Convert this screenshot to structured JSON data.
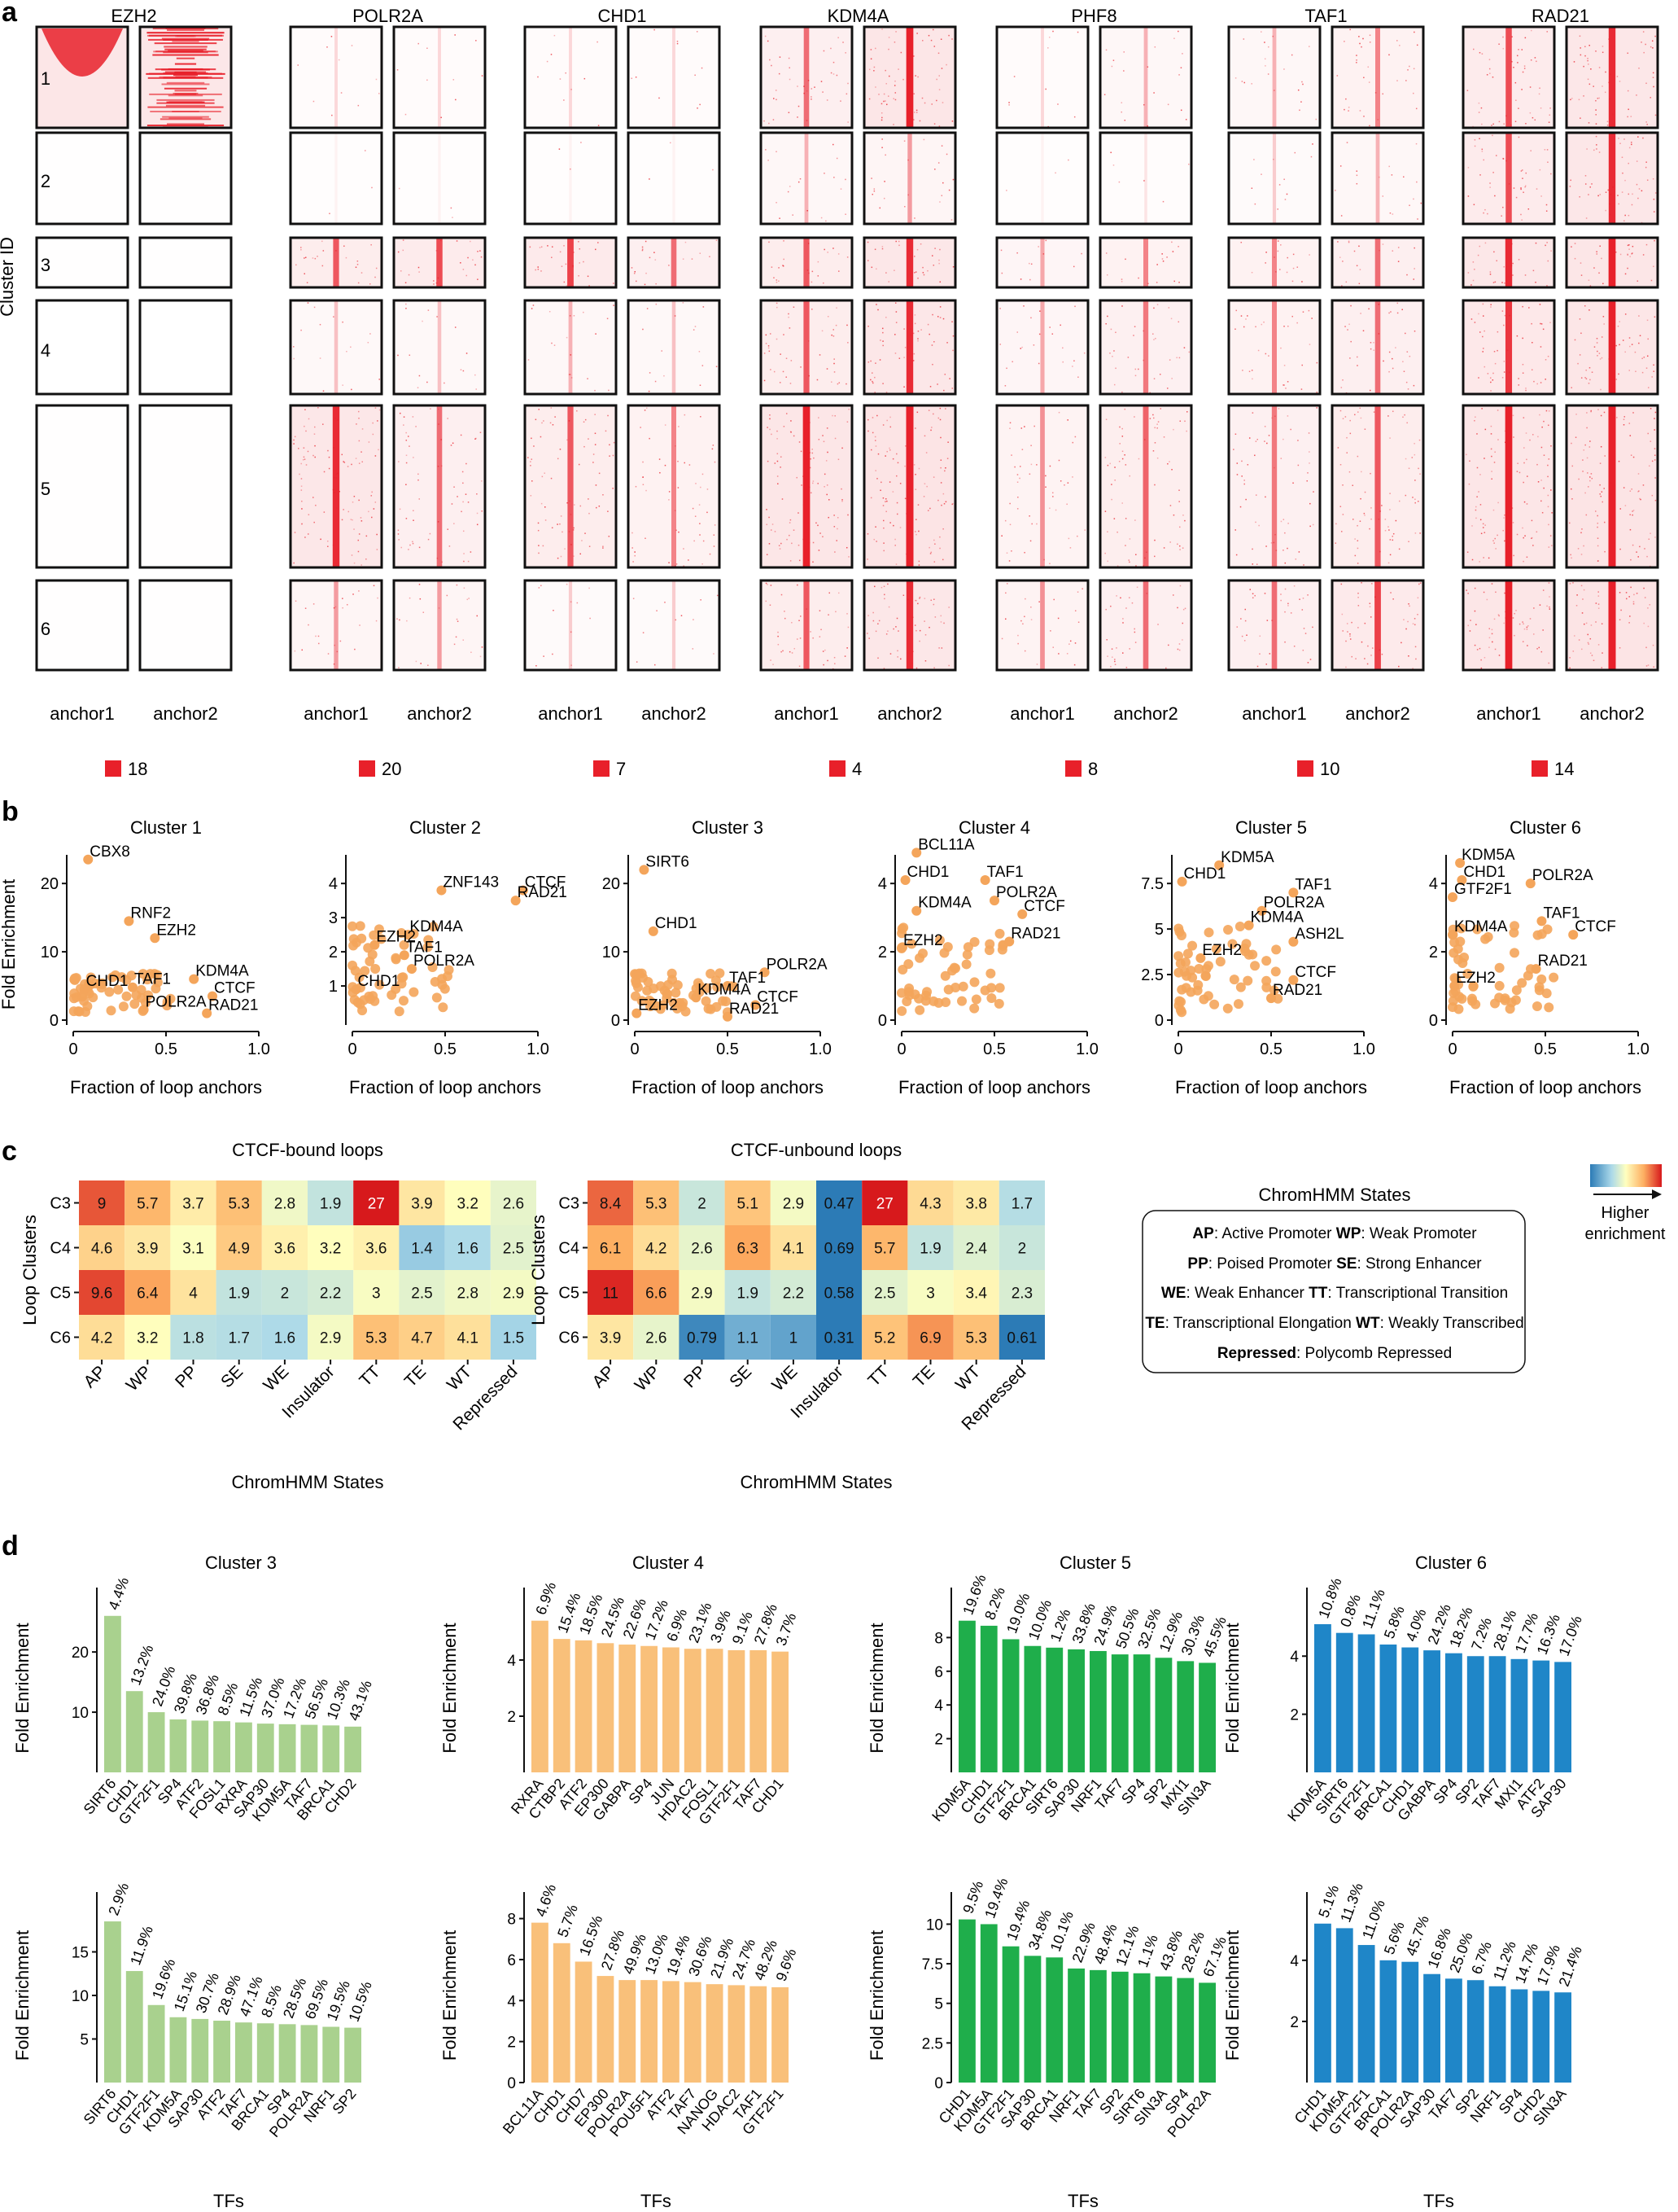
{
  "panel_letters": [
    "a",
    "b",
    "c",
    "d"
  ],
  "panel_a": {
    "factors": [
      "EZH2",
      "POLR2A",
      "CHD1",
      "KDM4A",
      "PHF8",
      "TAF1",
      "RAD21"
    ],
    "anchor_labels": [
      "anchor1",
      "anchor2"
    ],
    "cluster_ids": [
      "1",
      "2",
      "3",
      "4",
      "5",
      "6"
    ],
    "y_title": "Cluster ID",
    "scale_values": [
      "18",
      "20",
      "7",
      "4",
      "8",
      "10",
      "14"
    ],
    "heatmap_color": "#e8202a"
  },
  "panel_b": {
    "xlabel": "Fraction of loop anchors",
    "ylabel": "Fold Enrichment",
    "point_color": "#f4a55b",
    "chart_data": [
      {
        "type": "scatter",
        "title": "Cluster 1",
        "xlim": [
          0,
          1
        ],
        "yticks": [
          0,
          10,
          20
        ],
        "xticks": [
          "0",
          "0.5",
          "1.0"
        ],
        "labels": [
          {
            "text": "CBX8",
            "x": 0.08,
            "y": 23.5
          },
          {
            "text": "RNF2",
            "x": 0.3,
            "y": 14.5
          },
          {
            "text": "EZH2",
            "x": 0.44,
            "y": 12
          },
          {
            "text": "CHD1",
            "x": 0.06,
            "y": 4.5
          },
          {
            "text": "TAF1",
            "x": 0.32,
            "y": 4.8
          },
          {
            "text": "KDM4A",
            "x": 0.65,
            "y": 6
          },
          {
            "text": "CTCF",
            "x": 0.75,
            "y": 3.5
          },
          {
            "text": "POLR2A",
            "x": 0.38,
            "y": 1.5
          },
          {
            "text": "RAD21",
            "x": 0.72,
            "y": 1
          }
        ]
      },
      {
        "type": "scatter",
        "title": "Cluster 2",
        "xlim": [
          0,
          1
        ],
        "yticks": [
          1,
          2,
          3,
          4
        ],
        "xticks": [
          "0",
          "0.5",
          "1.0"
        ],
        "labels": [
          {
            "text": "ZNF143",
            "x": 0.48,
            "y": 3.8
          },
          {
            "text": "CTCF",
            "x": 0.92,
            "y": 3.8
          },
          {
            "text": "RAD21",
            "x": 0.88,
            "y": 3.5
          },
          {
            "text": "KDM4A",
            "x": 0.3,
            "y": 2.5
          },
          {
            "text": "EZH2",
            "x": 0.12,
            "y": 2.2
          },
          {
            "text": "TAF1",
            "x": 0.28,
            "y": 1.9
          },
          {
            "text": "POLR2A",
            "x": 0.32,
            "y": 1.5
          },
          {
            "text": "CHD1",
            "x": 0.02,
            "y": 0.9
          }
        ]
      },
      {
        "type": "scatter",
        "title": "Cluster 3",
        "xlim": [
          0,
          1
        ],
        "yticks": [
          0,
          10,
          20
        ],
        "xticks": [
          "0",
          "0.5",
          "1.0"
        ],
        "labels": [
          {
            "text": "SIRT6",
            "x": 0.05,
            "y": 22
          },
          {
            "text": "CHD1",
            "x": 0.1,
            "y": 13
          },
          {
            "text": "POLR2A",
            "x": 0.7,
            "y": 7
          },
          {
            "text": "TAF1",
            "x": 0.5,
            "y": 5
          },
          {
            "text": "KDM4A",
            "x": 0.33,
            "y": 3.3
          },
          {
            "text": "CTCF",
            "x": 0.65,
            "y": 2.2
          },
          {
            "text": "RAD21",
            "x": 0.5,
            "y": 0.5
          },
          {
            "text": "EZH2",
            "x": 0.01,
            "y": 1
          }
        ]
      },
      {
        "type": "scatter",
        "title": "Cluster 4",
        "xlim": [
          0,
          1
        ],
        "yticks": [
          0,
          2,
          4
        ],
        "xticks": [
          "0",
          "0.5",
          "1.0"
        ],
        "labels": [
          {
            "text": "BCL11A",
            "x": 0.08,
            "y": 4.9
          },
          {
            "text": "CHD1",
            "x": 0.02,
            "y": 4.1
          },
          {
            "text": "TAF1",
            "x": 0.45,
            "y": 4.1
          },
          {
            "text": "POLR2A",
            "x": 0.5,
            "y": 3.5
          },
          {
            "text": "KDM4A",
            "x": 0.08,
            "y": 3.2
          },
          {
            "text": "CTCF",
            "x": 0.65,
            "y": 3.1
          },
          {
            "text": "RAD21",
            "x": 0.58,
            "y": 2.3
          },
          {
            "text": "EZH2",
            "x": 0.0,
            "y": 2.1
          }
        ]
      },
      {
        "type": "scatter",
        "title": "Cluster 5",
        "xlim": [
          0,
          1
        ],
        "yticks": [
          0,
          2.5,
          5.0,
          7.5
        ],
        "xticks": [
          "0",
          "0.5",
          "1.0"
        ],
        "labels": [
          {
            "text": "KDM5A",
            "x": 0.22,
            "y": 8.5
          },
          {
            "text": "CHD1",
            "x": 0.02,
            "y": 7.6
          },
          {
            "text": "TAF1",
            "x": 0.62,
            "y": 7
          },
          {
            "text": "POLR2A",
            "x": 0.45,
            "y": 6
          },
          {
            "text": "KDM4A",
            "x": 0.38,
            "y": 5.2
          },
          {
            "text": "ASH2L",
            "x": 0.62,
            "y": 4.3
          },
          {
            "text": "EZH2",
            "x": 0.12,
            "y": 3.4
          },
          {
            "text": "CTCF",
            "x": 0.62,
            "y": 2.2
          },
          {
            "text": "RAD21",
            "x": 0.5,
            "y": 1.2
          }
        ]
      },
      {
        "type": "scatter",
        "title": "Cluster 6",
        "xlim": [
          0,
          1
        ],
        "yticks": [
          0,
          2,
          4
        ],
        "xticks": [
          "0",
          "0.5",
          "1.0"
        ],
        "labels": [
          {
            "text": "KDM5A",
            "x": 0.04,
            "y": 4.6
          },
          {
            "text": "CHD1",
            "x": 0.05,
            "y": 4.1
          },
          {
            "text": "POLR2A",
            "x": 0.42,
            "y": 4.0
          },
          {
            "text": "GTF2F1",
            "x": 0.0,
            "y": 3.6
          },
          {
            "text": "TAF1",
            "x": 0.48,
            "y": 2.9
          },
          {
            "text": "KDM4A",
            "x": 0.0,
            "y": 2.5
          },
          {
            "text": "CTCF",
            "x": 0.65,
            "y": 2.5
          },
          {
            "text": "RAD21",
            "x": 0.45,
            "y": 1.5
          },
          {
            "text": "EZH2",
            "x": 0.01,
            "y": 1.0
          }
        ]
      }
    ]
  },
  "panel_c": {
    "cols": [
      "AP",
      "WP",
      "PP",
      "SE",
      "WE",
      "Insulator",
      "TT",
      "TE",
      "WT",
      "Repressed"
    ],
    "rows": [
      "C3",
      "C4",
      "C5",
      "C6"
    ],
    "ylabel": "Loop Clusters",
    "xlabel": "ChromHMM States",
    "chart_data": [
      {
        "type": "heatmap",
        "title": "CTCF-bound loops",
        "values": [
          [
            "9",
            "5.7",
            "3.7",
            "5.3",
            "2.8",
            "1.9",
            "27",
            "3.9",
            "3.2",
            "2.6"
          ],
          [
            "4.6",
            "3.9",
            "3.1",
            "4.9",
            "3.6",
            "3.2",
            "3.6",
            "1.4",
            "1.6",
            "2.5"
          ],
          [
            "9.6",
            "6.4",
            "4",
            "1.9",
            "2",
            "2.2",
            "3",
            "2.5",
            "2.8",
            "2.9"
          ],
          [
            "4.2",
            "3.2",
            "1.8",
            "1.7",
            "1.6",
            "2.9",
            "5.3",
            "4.7",
            "4.1",
            "1.5"
          ]
        ]
      },
      {
        "type": "heatmap",
        "title": "CTCF-unbound loops",
        "values": [
          [
            "8.4",
            "5.3",
            "2",
            "5.1",
            "2.9",
            "0.47",
            "27",
            "4.3",
            "3.8",
            "1.7"
          ],
          [
            "6.1",
            "4.2",
            "2.6",
            "6.3",
            "4.1",
            "0.69",
            "5.7",
            "1.9",
            "2.4",
            "2"
          ],
          [
            "11",
            "6.6",
            "2.9",
            "1.9",
            "2.2",
            "0.58",
            "2.5",
            "3",
            "3.4",
            "2.3"
          ],
          [
            "3.9",
            "2.6",
            "0.79",
            "1.1",
            "1",
            "0.31",
            "5.2",
            "6.9",
            "5.3",
            "0.61"
          ]
        ]
      }
    ],
    "colorbar_label_1": "Higher",
    "colorbar_label_2": "enrichment",
    "legend": {
      "title": "ChromHMM States",
      "rows": [
        [
          {
            "abbr": "AP",
            "desc": ": Active Promoter"
          },
          {
            "abbr": "WP",
            "desc": ": Weak Promoter"
          }
        ],
        [
          {
            "abbr": "PP",
            "desc": ": Poised Promoter"
          },
          {
            "abbr": "SE",
            "desc": ": Strong Enhancer"
          }
        ],
        [
          {
            "abbr": "WE",
            "desc": ": Weak Enhancer"
          },
          {
            "abbr": "TT",
            "desc": ": Transcriptional Transition"
          }
        ],
        [
          {
            "abbr": "TE",
            "desc": ": Transcriptional Elongation"
          },
          {
            "abbr": "WT",
            "desc": ": Weakly Transcribed"
          }
        ],
        [
          {
            "abbr": "Repressed",
            "desc": ": Polycomb Repressed"
          }
        ]
      ]
    }
  },
  "panel_d": {
    "ylabel": "Fold Enrichment",
    "xlabel": "TFs",
    "colors": [
      "#a9d18e",
      "#f9c07a",
      "#1fae4b",
      "#1f86c8"
    ],
    "chart_data": [
      {
        "type": "bar",
        "title": "Cluster 3",
        "ylim": [
          0,
          28
        ],
        "yticks": [
          10,
          20
        ],
        "categories": [
          "SIRT6",
          "CHD1",
          "GTF2F1",
          "SP4",
          "ATF2",
          "FOSL1",
          "RXRA",
          "SAP30",
          "KDM5A",
          "TAF7",
          "BRCA1",
          "CHD2"
        ],
        "values": [
          26,
          13.5,
          10,
          8.8,
          8.6,
          8.5,
          8.3,
          8.1,
          8.0,
          7.9,
          7.8,
          7.6
        ],
        "pct": [
          "4.4%",
          "13.2%",
          "24.0%",
          "39.8%",
          "36.8%",
          "8.5%",
          "11.5%",
          "37.0%",
          "17.2%",
          "56.5%",
          "10.3%",
          "43.1%"
        ]
      },
      {
        "type": "bar",
        "title": "Cluster 4",
        "ylim": [
          0,
          6
        ],
        "yticks": [
          2,
          4
        ],
        "categories": [
          "RXRA",
          "CTBP2",
          "ATF2",
          "EP300",
          "GABPA",
          "SP4",
          "JUN",
          "HDAC2",
          "FOSL1",
          "GTF2F1",
          "TAF7",
          "CHD1"
        ],
        "values": [
          5.4,
          4.75,
          4.7,
          4.6,
          4.55,
          4.5,
          4.45,
          4.4,
          4.4,
          4.35,
          4.35,
          4.3
        ],
        "pct": [
          "6.9%",
          "15.4%",
          "18.5%",
          "24.5%",
          "22.6%",
          "17.2%",
          "6.9%",
          "23.1%",
          "3.9%",
          "9.1%",
          "27.8%",
          "3.7%"
        ]
      },
      {
        "type": "bar",
        "title": "Cluster 5",
        "ylim": [
          0,
          10
        ],
        "yticks": [
          2,
          4,
          6,
          8
        ],
        "categories": [
          "KDM5A",
          "CHD1",
          "GTF2F1",
          "BRCA1",
          "SIRT6",
          "SAP30",
          "NRF1",
          "TAF7",
          "SP4",
          "SP2",
          "MXI1",
          "SIN3A"
        ],
        "values": [
          9.0,
          8.7,
          7.9,
          7.5,
          7.4,
          7.3,
          7.2,
          7.0,
          7.0,
          6.8,
          6.6,
          6.5
        ],
        "pct": [
          "19.6%",
          "8.2%",
          "19.0%",
          "10.0%",
          "1.2%",
          "33.8%",
          "24.9%",
          "50.5%",
          "32.5%",
          "12.9%",
          "30.3%",
          "45.5%"
        ]
      },
      {
        "type": "bar",
        "title": "Cluster 6",
        "ylim": [
          0,
          5.8
        ],
        "yticks": [
          2,
          4
        ],
        "categories": [
          "KDM5A",
          "SIRT6",
          "GTF2F1",
          "BRCA1",
          "CHD1",
          "GABPA",
          "SP4",
          "SP2",
          "TAF7",
          "MXI1",
          "ATF2",
          "SAP30"
        ],
        "values": [
          5.1,
          4.8,
          4.75,
          4.4,
          4.3,
          4.2,
          4.1,
          4.0,
          4.0,
          3.9,
          3.85,
          3.8
        ],
        "pct": [
          "10.8%",
          "0.8%",
          "11.1%",
          "5.8%",
          "4.0%",
          "24.2%",
          "18.2%",
          "7.2%",
          "28.1%",
          "17.7%",
          "16.3%",
          "17.0%"
        ]
      },
      {
        "type": "bar",
        "title": "",
        "ylim": [
          0,
          20
        ],
        "yticks": [
          5,
          10,
          15
        ],
        "categories": [
          "SIRT6",
          "CHD1",
          "GTF2F1",
          "KDM5A",
          "SAP30",
          "ATF2",
          "TAF7",
          "BRCA1",
          "SP4",
          "POLR2A",
          "NRF1",
          "SP2"
        ],
        "values": [
          18.5,
          12.8,
          8.9,
          7.5,
          7.3,
          7.1,
          6.9,
          6.8,
          6.7,
          6.6,
          6.4,
          6.3
        ],
        "pct": [
          "2.9%",
          "11.9%",
          "19.6%",
          "15.1%",
          "30.7%",
          "28.9%",
          "47.1%",
          "8.5%",
          "28.5%",
          "69.5%",
          "19.5%",
          "10.5%"
        ]
      },
      {
        "type": "bar",
        "title": "",
        "ylim": [
          0,
          8.5
        ],
        "yticks": [
          0,
          2,
          4,
          6,
          8
        ],
        "categories": [
          "BCL11A",
          "CHD1",
          "CHD7",
          "EP300",
          "POLR2A",
          "POU5F1",
          "ATF2",
          "TAF7",
          "NANOG",
          "HDAC2",
          "TAF1",
          "GTF2F1"
        ],
        "values": [
          7.8,
          6.8,
          5.9,
          5.2,
          5.0,
          5.0,
          4.95,
          4.9,
          4.8,
          4.75,
          4.7,
          4.65
        ],
        "pct": [
          "4.6%",
          "5.7%",
          "16.5%",
          "27.8%",
          "49.9%",
          "13.0%",
          "19.4%",
          "30.6%",
          "21.9%",
          "24.7%",
          "48.2%",
          "9.6%"
        ]
      },
      {
        "type": "bar",
        "title": "",
        "ylim": [
          0,
          11
        ],
        "yticks": [
          0,
          2.5,
          5.0,
          7.5,
          10.0
        ],
        "categories": [
          "CHD1",
          "KDM5A",
          "GTF2F1",
          "SAP30",
          "BRCA1",
          "NRF1",
          "TAF7",
          "SP2",
          "SIRT6",
          "SIN3A",
          "SP4",
          "POLR2A"
        ],
        "values": [
          10.3,
          10.0,
          8.6,
          8.0,
          7.9,
          7.2,
          7.1,
          7.0,
          6.9,
          6.7,
          6.6,
          6.3
        ],
        "pct": [
          "9.5%",
          "19.4%",
          "19.4%",
          "34.8%",
          "10.1%",
          "22.9%",
          "48.4%",
          "12.1%",
          "1.1%",
          "43.8%",
          "28.2%",
          "67.1%"
        ]
      },
      {
        "type": "bar",
        "title": "",
        "ylim": [
          0,
          5.7
        ],
        "yticks": [
          2,
          4
        ],
        "categories": [
          "CHD1",
          "KDM5A",
          "GTF2F1",
          "BRCA1",
          "POLR2A",
          "SAP30",
          "TAF7",
          "SP2",
          "NRF1",
          "SP4",
          "CHD2",
          "SIN3A"
        ],
        "values": [
          5.2,
          5.05,
          4.5,
          4.0,
          3.95,
          3.55,
          3.4,
          3.35,
          3.15,
          3.05,
          3.0,
          2.95
        ],
        "pct": [
          "5.1%",
          "11.3%",
          "11.0%",
          "5.6%",
          "45.7%",
          "16.8%",
          "25.0%",
          "6.7%",
          "11.2%",
          "14.7%",
          "17.9%",
          "21.4%"
        ]
      }
    ]
  }
}
